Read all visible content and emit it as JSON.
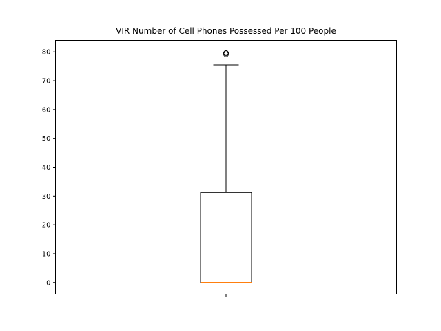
{
  "chart_data": {
    "type": "box",
    "title": "VIR Number of Cell Phones Possessed Per 100 People",
    "xlabel": "",
    "ylabel": "",
    "ylim": [
      -4,
      84
    ],
    "yticks": [
      0,
      10,
      20,
      30,
      40,
      50,
      60,
      70,
      80
    ],
    "xticks": [
      ""
    ],
    "grid": false,
    "series": [
      {
        "min": 0,
        "q1": 0,
        "median": 0,
        "q3": 31.2,
        "max": 75.5,
        "outliers": [
          79.2,
          79.6
        ]
      }
    ],
    "colors": {
      "box": "#000000",
      "median": "#ff7f0e",
      "axes": "#000000"
    }
  }
}
